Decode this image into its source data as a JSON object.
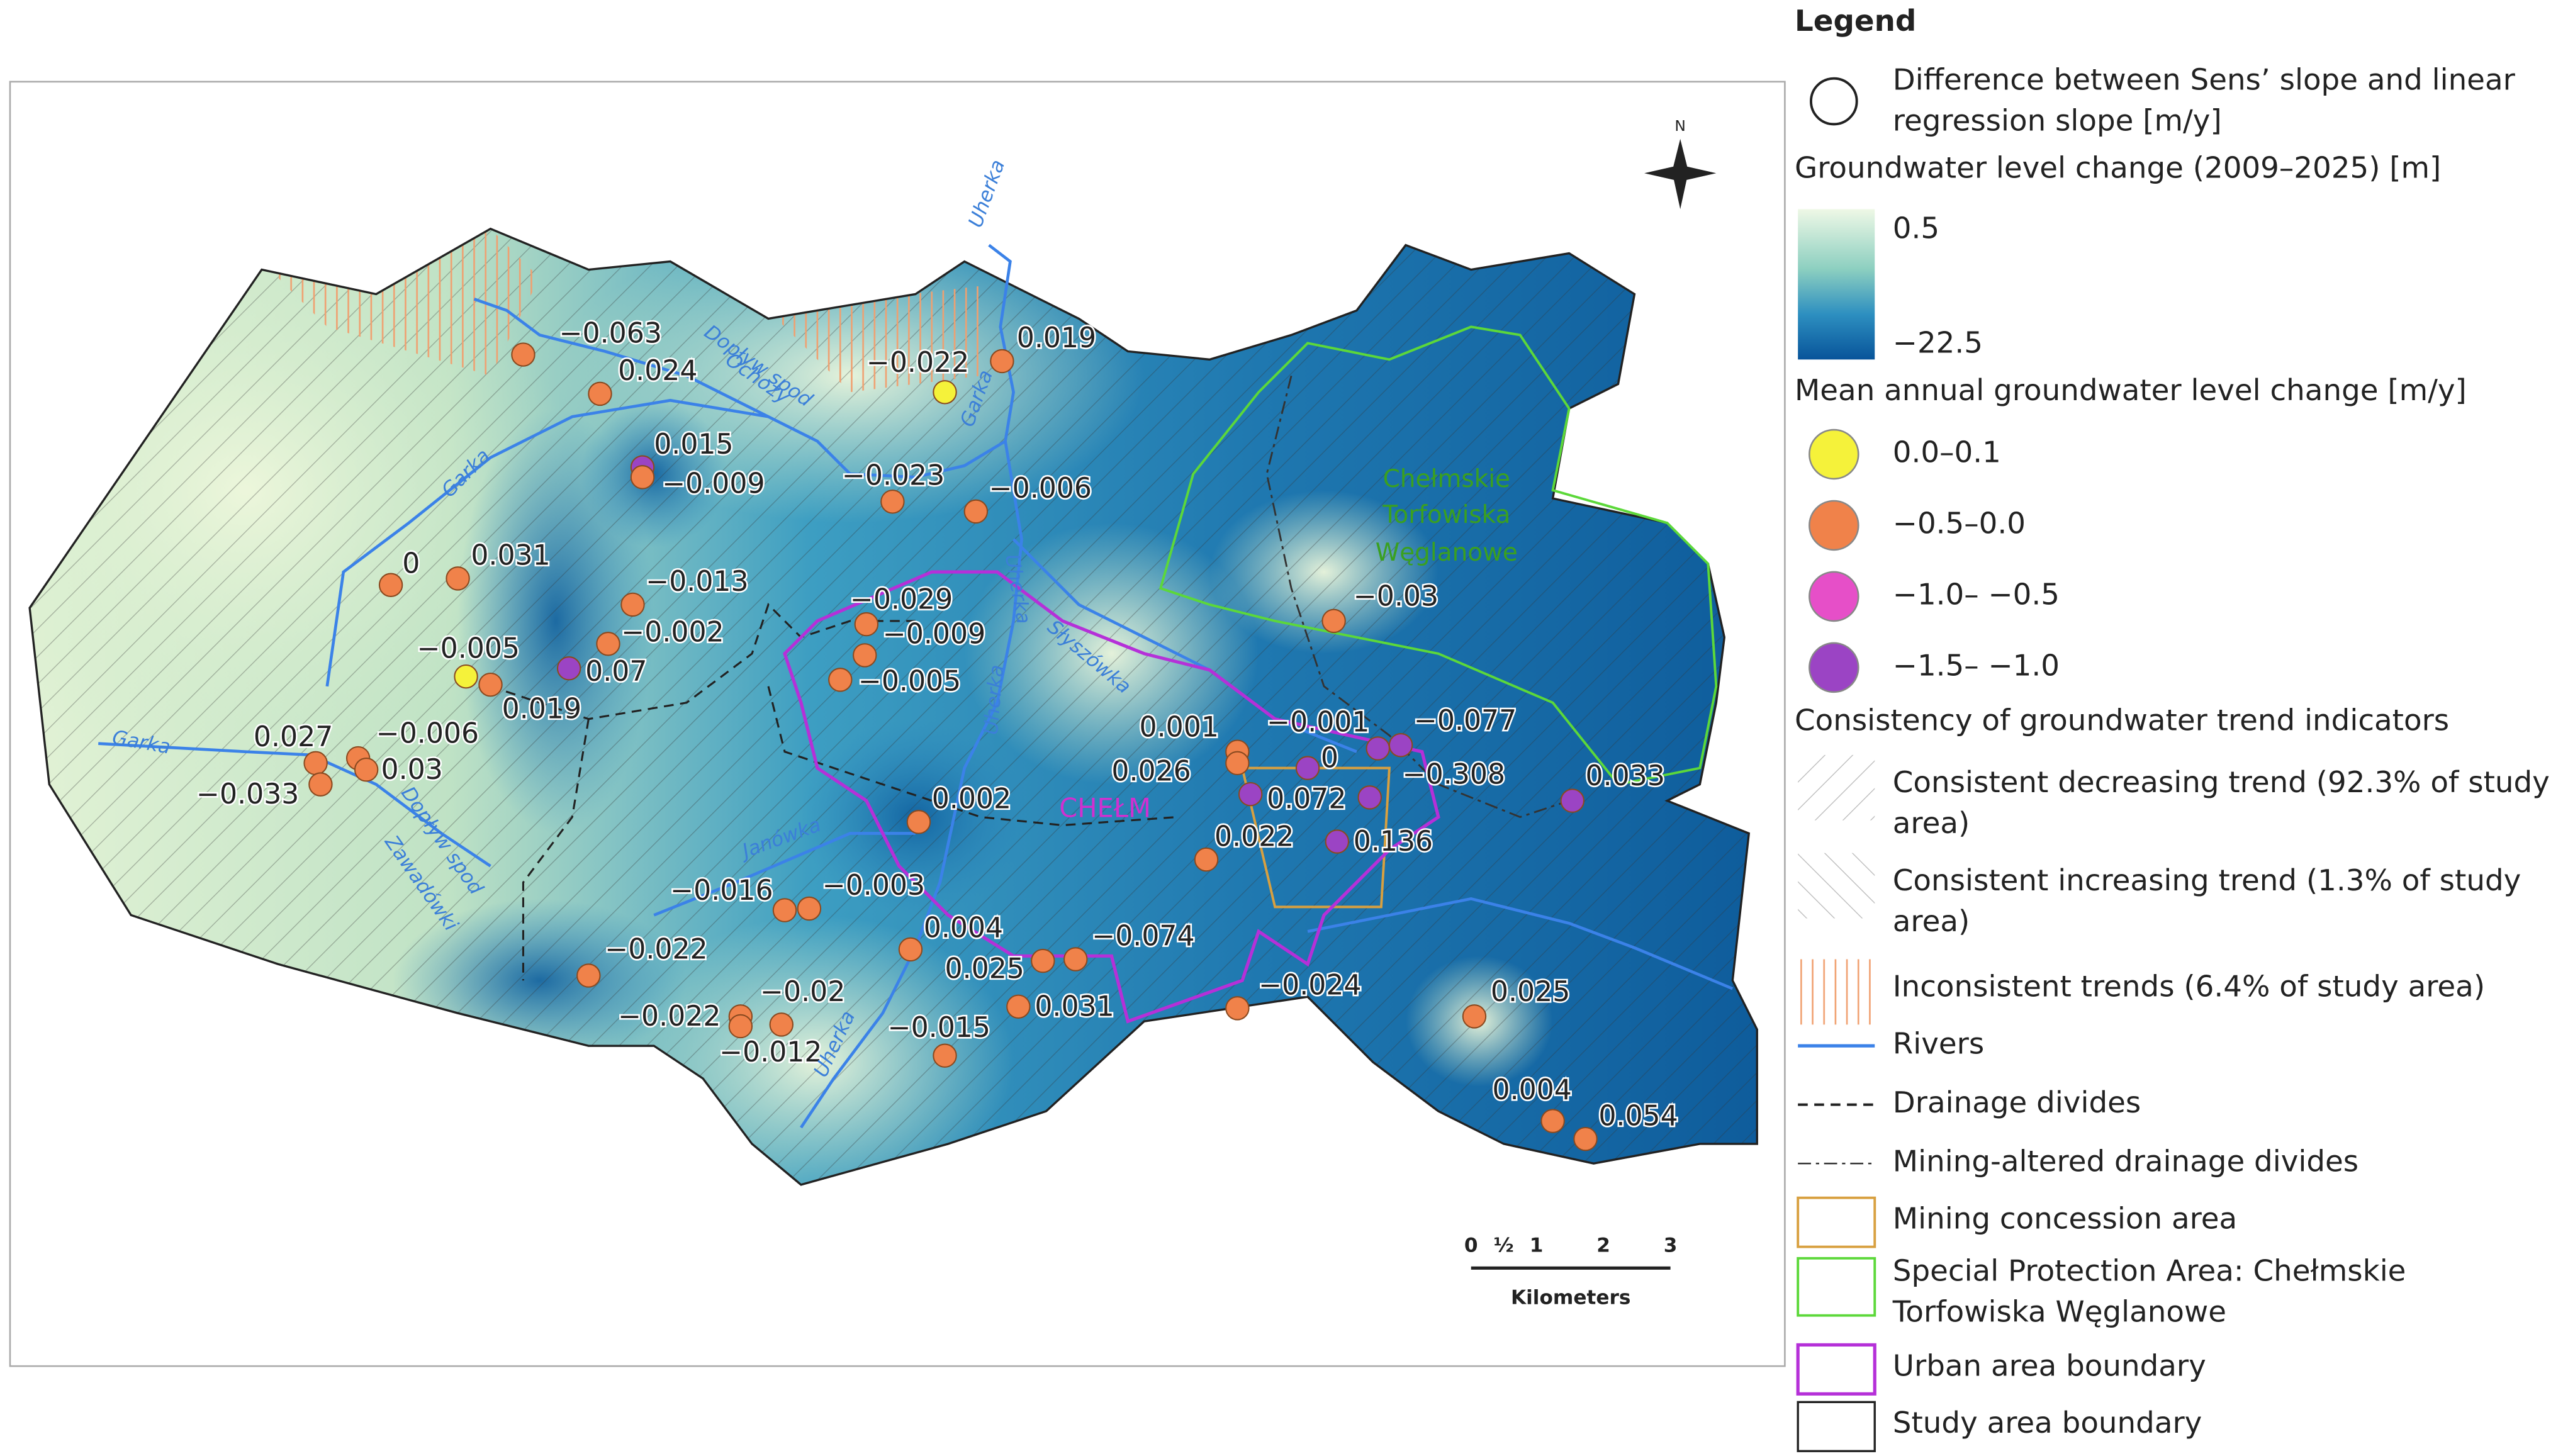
{
  "map": {
    "stations": [
      {
        "label": "−0.063",
        "color": "#f0824a"
      },
      {
        "label": "0.024",
        "color": "#f0824a"
      },
      {
        "label": "−0.022",
        "color": "#f5f23a"
      },
      {
        "label": "0.019",
        "color": "#f0824a"
      },
      {
        "label": "0.015",
        "color": "#9b44c4"
      },
      {
        "label": "−0.009",
        "color": "#f0824a"
      },
      {
        "label": "−0.023",
        "color": "#f0824a"
      },
      {
        "label": "−0.006",
        "color": "#f0824a"
      },
      {
        "label": "0",
        "color": "#f0824a"
      },
      {
        "label": "0.031",
        "color": "#f0824a"
      },
      {
        "label": "−0.013",
        "color": "#f0824a"
      },
      {
        "label": "−0.002",
        "color": "#f0824a"
      },
      {
        "label": "−0.005",
        "color": "#f5f23a"
      },
      {
        "label": "0.019",
        "color": "#f0824a"
      },
      {
        "label": "0.07",
        "color": "#9b44c4"
      },
      {
        "label": "−0.029",
        "color": "#f0824a"
      },
      {
        "label": "−0.009",
        "color": "#f0824a"
      },
      {
        "label": "−0.005",
        "color": "#f0824a"
      },
      {
        "label": "0.027",
        "color": "#f0824a"
      },
      {
        "label": "−0.033",
        "color": "#f0824a"
      },
      {
        "label": "−0.006",
        "color": "#f0824a"
      },
      {
        "label": "0.03",
        "color": "#f0824a"
      },
      {
        "label": "0.002",
        "color": "#f0824a"
      },
      {
        "label": "0.001",
        "color": "#f0824a"
      },
      {
        "label": "0.026",
        "color": "#f0824a"
      },
      {
        "label": "0",
        "color": "#9b44c4"
      },
      {
        "label": "−0.001",
        "color": "#9b44c4"
      },
      {
        "label": "−0.077",
        "color": "#9b44c4"
      },
      {
        "label": "0.072",
        "color": "#9b44c4"
      },
      {
        "label": "−0.308",
        "color": "#9b44c4"
      },
      {
        "label": "0.136",
        "color": "#9b44c4"
      },
      {
        "label": "0.022",
        "color": "#f0824a"
      },
      {
        "label": "0.033",
        "color": "#9b44c4"
      },
      {
        "label": "−0.03",
        "color": "#f0824a"
      },
      {
        "label": "−0.016",
        "color": "#f0824a"
      },
      {
        "label": "−0.003",
        "color": "#f0824a"
      },
      {
        "label": "−0.022",
        "color": "#f0824a"
      },
      {
        "label": "0.004",
        "color": "#f0824a"
      },
      {
        "label": "0.025",
        "color": "#f0824a"
      },
      {
        "label": "−0.074",
        "color": "#f0824a"
      },
      {
        "label": "0.031",
        "color": "#f0824a"
      },
      {
        "label": "−0.024",
        "color": "#f0824a"
      },
      {
        "label": "−0.022",
        "color": "#f0824a"
      },
      {
        "label": "−0.02",
        "color": "#f0824a"
      },
      {
        "label": "−0.012",
        "color": "#f0824a"
      },
      {
        "label": "−0.015",
        "color": "#f0824a"
      },
      {
        "label": "0.025",
        "color": "#f0824a"
      },
      {
        "label": "0.004",
        "color": "#f0824a"
      },
      {
        "label": "0.054",
        "color": "#f0824a"
      }
    ],
    "rivers": [
      "Uherka",
      "Garka",
      "Dopływ spod",
      "Ochozy",
      "Garka",
      "Garka",
      "Uherka",
      "Słyszówka",
      "Uherka",
      "Dopływ spod",
      "Zawadówki",
      "Janówka",
      "Uherka"
    ],
    "town": "CHEŁM",
    "protected_area": [
      "Chełmskie",
      "Torfowiska",
      "Węglanowe"
    ],
    "north": "N",
    "scale": [
      "0",
      "½",
      "1",
      "2",
      "3",
      "Kilometers"
    ]
  },
  "legend": {
    "title": "Legend",
    "difference": [
      "Difference between Sens’ slope and linear",
      "regression slope [m/y]"
    ],
    "level_change": {
      "title": "Groundwater level change (2009–2025) [m]",
      "high": "0.5",
      "low": "−22.5"
    },
    "annual_change": {
      "title": "Mean annual groundwater level change [m/y]",
      "classes": [
        {
          "label": "0.0–0.1",
          "color": "#f5f23a"
        },
        {
          "label": "−0.5–0.0",
          "color": "#f0824a"
        },
        {
          "label": "−1.0– −0.5",
          "color": "#e64fc8"
        },
        {
          "label": "−1.5– −1.0",
          "color": "#9b44c4"
        }
      ]
    },
    "consistency": {
      "title": "Consistency of groundwater trend indicators",
      "items": [
        [
          "Consistent decreasing trend (92.3% of study",
          "area)"
        ],
        [
          "Consistent increasing trend (1.3% of study",
          "area)"
        ],
        [
          "Inconsistent trends (6.4% of study area)"
        ]
      ]
    },
    "lines": [
      "Rivers",
      "Drainage divides",
      "Mining-altered drainage divides",
      "Mining concession area",
      [
        "Special Protection Area: Chełmskie",
        "Torfowiska Węglanowe"
      ],
      "Urban area boundary",
      "Study area boundary"
    ]
  }
}
